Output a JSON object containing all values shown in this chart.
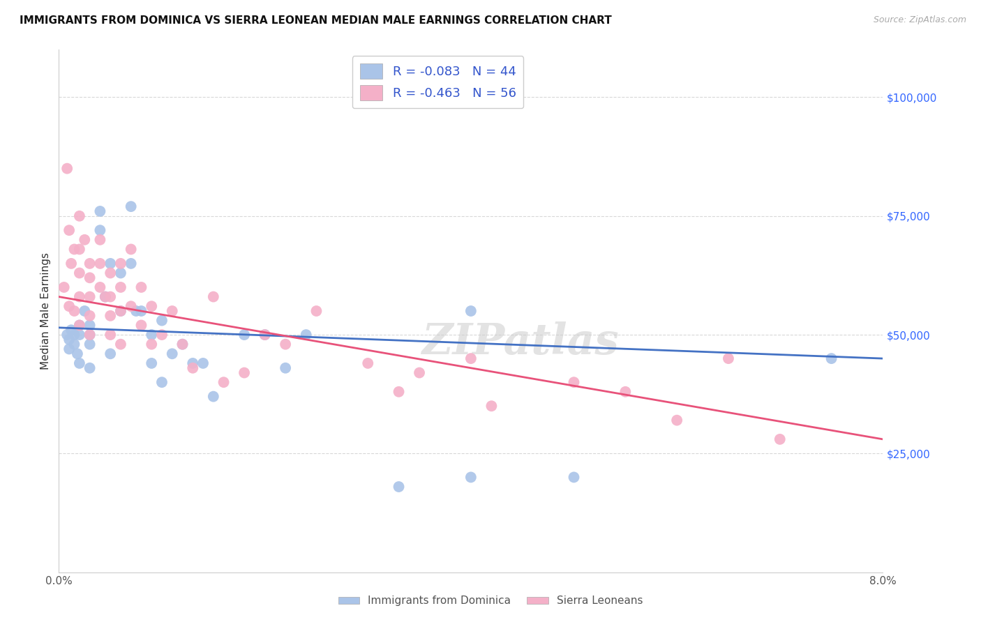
{
  "title": "IMMIGRANTS FROM DOMINICA VS SIERRA LEONEAN MEDIAN MALE EARNINGS CORRELATION CHART",
  "source": "Source: ZipAtlas.com",
  "ylabel": "Median Male Earnings",
  "xlim": [
    0.0,
    0.08
  ],
  "ylim": [
    0,
    110000
  ],
  "yticks": [
    25000,
    50000,
    75000,
    100000
  ],
  "ytick_labels": [
    "$25,000",
    "$50,000",
    "$75,000",
    "$100,000"
  ],
  "bg_color": "#ffffff",
  "grid_color": "#d8d8d8",
  "watermark": "ZIPatlas",
  "legend_text_color": "#3355cc",
  "series": [
    {
      "label": "Immigrants from Dominica",
      "R": "-0.083",
      "N": 44,
      "color": "#aac4e8",
      "line_color": "#4472c4",
      "x": [
        0.0008,
        0.001,
        0.001,
        0.0012,
        0.0015,
        0.0015,
        0.0018,
        0.002,
        0.002,
        0.002,
        0.0025,
        0.003,
        0.003,
        0.003,
        0.003,
        0.004,
        0.004,
        0.0045,
        0.005,
        0.005,
        0.006,
        0.006,
        0.007,
        0.007,
        0.0075,
        0.008,
        0.009,
        0.009,
        0.01,
        0.01,
        0.011,
        0.012,
        0.013,
        0.014,
        0.015,
        0.018,
        0.02,
        0.022,
        0.024,
        0.033,
        0.04,
        0.05,
        0.04,
        0.075
      ],
      "y": [
        50000,
        49000,
        47000,
        51000,
        50000,
        48000,
        46000,
        52000,
        50000,
        44000,
        55000,
        52000,
        50000,
        48000,
        43000,
        76000,
        72000,
        58000,
        65000,
        46000,
        63000,
        55000,
        77000,
        65000,
        55000,
        55000,
        50000,
        44000,
        53000,
        40000,
        46000,
        48000,
        44000,
        44000,
        37000,
        50000,
        50000,
        43000,
        50000,
        18000,
        55000,
        20000,
        20000,
        45000
      ]
    },
    {
      "label": "Sierra Leoneans",
      "R": "-0.463",
      "N": 56,
      "color": "#f4b0c8",
      "line_color": "#e8527a",
      "x": [
        0.0005,
        0.0008,
        0.001,
        0.001,
        0.0012,
        0.0015,
        0.0015,
        0.002,
        0.002,
        0.002,
        0.002,
        0.002,
        0.0025,
        0.003,
        0.003,
        0.003,
        0.003,
        0.003,
        0.004,
        0.004,
        0.004,
        0.0045,
        0.005,
        0.005,
        0.005,
        0.005,
        0.006,
        0.006,
        0.006,
        0.006,
        0.007,
        0.007,
        0.008,
        0.008,
        0.009,
        0.009,
        0.01,
        0.011,
        0.012,
        0.013,
        0.015,
        0.016,
        0.018,
        0.02,
        0.022,
        0.025,
        0.03,
        0.033,
        0.035,
        0.04,
        0.042,
        0.05,
        0.055,
        0.06,
        0.065,
        0.07
      ],
      "y": [
        60000,
        85000,
        72000,
        56000,
        65000,
        68000,
        55000,
        75000,
        68000,
        63000,
        58000,
        52000,
        70000,
        65000,
        62000,
        58000,
        54000,
        50000,
        70000,
        65000,
        60000,
        58000,
        63000,
        58000,
        54000,
        50000,
        65000,
        60000,
        55000,
        48000,
        68000,
        56000,
        60000,
        52000,
        56000,
        48000,
        50000,
        55000,
        48000,
        43000,
        58000,
        40000,
        42000,
        50000,
        48000,
        55000,
        44000,
        38000,
        42000,
        45000,
        35000,
        40000,
        38000,
        32000,
        45000,
        28000
      ]
    }
  ],
  "line_intercepts": [
    {
      "x0": 0.0,
      "y0": 51500,
      "x1": 0.08,
      "y1": 45000
    },
    {
      "x0": 0.0,
      "y0": 58000,
      "x1": 0.08,
      "y1": 28000
    }
  ]
}
